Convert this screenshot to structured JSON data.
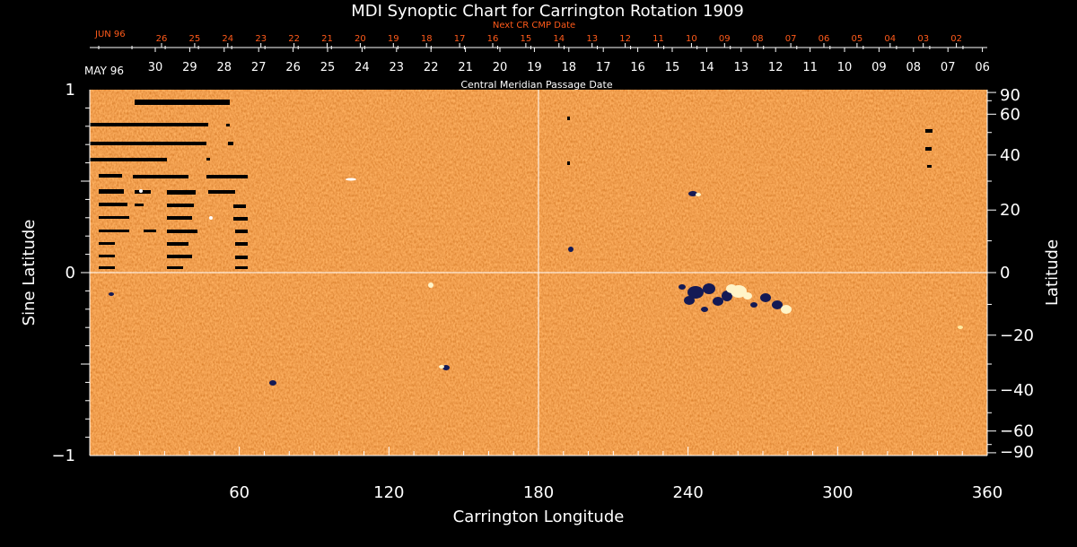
{
  "colors": {
    "background": "#000000",
    "field_base": "#f25a12",
    "text": "#ffffff",
    "accent_orange": "#ff5a1a",
    "positive_polarity": "#fff4c8",
    "negative_polarity": "#141a55"
  },
  "chart_data": {
    "type": "heatmap",
    "title": "MDI Synoptic Chart for Carrington Rotation 1909",
    "xlabel": "Carrington Longitude",
    "ylabel_left": "Sine Latitude",
    "ylabel_right": "Latitude",
    "xlim": [
      0,
      360
    ],
    "ylim": [
      -1,
      1
    ],
    "x_ticks": [
      "60",
      "120",
      "180",
      "240",
      "300",
      "360"
    ],
    "x_tick_values": [
      60,
      120,
      180,
      240,
      300,
      360
    ],
    "y_left_ticks": [
      "1",
      "0",
      "−1"
    ],
    "y_left_tick_values": [
      1,
      0,
      -1
    ],
    "y_right_ticks": [
      "90",
      "60",
      "40",
      "20",
      "0",
      "−20",
      "−40",
      "−60",
      "−90"
    ],
    "y_right_tick_values": [
      90,
      60,
      40,
      20,
      0,
      -20,
      -40,
      -60,
      -90
    ],
    "reference_lines": {
      "longitude": 180,
      "sine_latitude": 0
    },
    "top_axis_lower": {
      "label": "Central Meridian Passage Date",
      "month_label": "MAY 96",
      "day_labels": [
        "30",
        "29",
        "28",
        "27",
        "26",
        "25",
        "24",
        "23",
        "22",
        "21",
        "20",
        "19",
        "18",
        "17",
        "16",
        "15",
        "14",
        "13",
        "12",
        "11",
        "10",
        "09",
        "08",
        "07",
        "06"
      ]
    },
    "top_axis_upper": {
      "label": "Next CR CMP Date",
      "month_label": "JUN 96",
      "day_labels": [
        "26",
        "25",
        "24",
        "23",
        "22",
        "21",
        "20",
        "19",
        "18",
        "17",
        "16",
        "15",
        "14",
        "13",
        "12",
        "11",
        "10",
        "09",
        "08",
        "07",
        "06",
        "05",
        "04",
        "03",
        "02"
      ]
    },
    "features": [
      {
        "name": "active region",
        "longitude": 258,
        "sine_latitude": -0.12,
        "polarity": "mixed"
      },
      {
        "name": "data gaps",
        "longitude_range": [
          0,
          64
        ],
        "sine_latitude_range": [
          0.03,
          0.96
        ]
      }
    ]
  }
}
